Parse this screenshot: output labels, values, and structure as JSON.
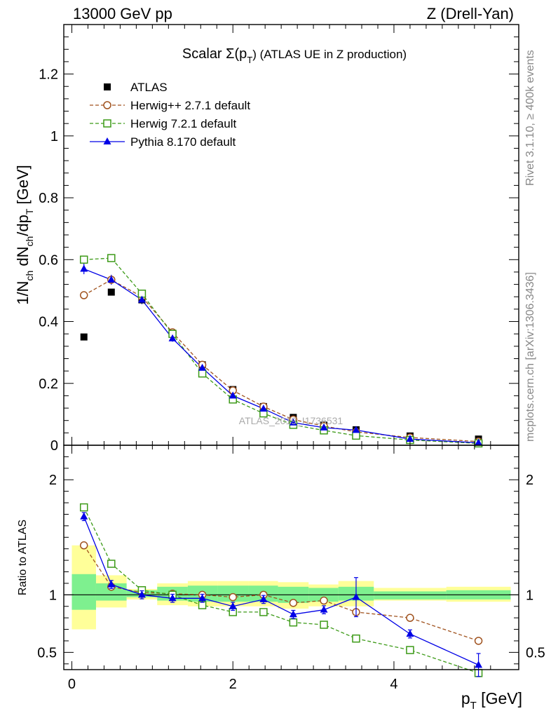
{
  "header": {
    "left": "13000 GeV pp",
    "right": "Z (Drell-Yan)"
  },
  "side_labels": {
    "rivet": "Rivet 3.1.10, ≥ 400k events",
    "mcplots": "mcplots.cern.ch [arXiv:1306.3436]"
  },
  "watermark": "ATLAS_2019_I1736531",
  "colors": {
    "atlas": "#000000",
    "herwigpp": "#a0521e",
    "herwig7": "#3c9a17",
    "pythia": "#0000e6",
    "band_inner": "#7ef08f",
    "band_outer": "#ffff99"
  },
  "chart_data": [
    {
      "type": "scatter",
      "panel": "main",
      "title_prefix": "Scalar Σ(p",
      "title_sub": "T",
      "title_suffix": ") (ATLAS UE in Z production)",
      "ylabel": "1/N_ch dN_ch/dp_T [GeV]",
      "ylabel_parts": {
        "a": "1/N",
        "b": "ch",
        "c": " dN",
        "d": "ch",
        "e": "/dp",
        "f": "T",
        "g": " [GeV]"
      },
      "xlim": [
        -0.1,
        5.55
      ],
      "ylim": [
        0,
        1.36
      ],
      "y_ticks": [
        0,
        0.2,
        0.4,
        0.6,
        0.8,
        1,
        1.2
      ],
      "y_tick_labels": [
        "0",
        "0.2",
        "0.4",
        "0.6",
        "0.8",
        "1",
        "1.2"
      ],
      "legend": [
        {
          "name": "ATLAS",
          "key": "atlas",
          "marker": "square-filled"
        },
        {
          "name": "Herwig++ 2.7.1 default",
          "key": "herwigpp",
          "marker": "circle-open"
        },
        {
          "name": "Herwig 7.2.1 default",
          "key": "herwig7",
          "marker": "square-open"
        },
        {
          "name": "Pythia 8.170 default",
          "key": "pythia",
          "marker": "triangle-filled"
        }
      ],
      "x": [
        0.15,
        0.49,
        0.87,
        1.25,
        1.62,
        2.0,
        2.38,
        2.75,
        3.13,
        3.53,
        4.2,
        5.05
      ],
      "series": [
        {
          "name": "ATLAS",
          "key": "atlas",
          "values": [
            0.35,
            0.495,
            0.47,
            0.36,
            0.26,
            0.18,
            0.125,
            0.09,
            0.065,
            0.05,
            0.03,
            0.02
          ]
        },
        {
          "name": "Herwig++ 2.7.1 default",
          "key": "herwigpp",
          "values": [
            0.485,
            0.535,
            0.48,
            0.365,
            0.26,
            0.177,
            0.125,
            0.083,
            0.062,
            0.043,
            0.025,
            0.012
          ]
        },
        {
          "name": "Herwig 7.2.1 default",
          "key": "herwig7",
          "values": [
            0.6,
            0.605,
            0.49,
            0.36,
            0.232,
            0.148,
            0.103,
            0.066,
            0.048,
            0.031,
            0.017,
            0.006
          ]
        },
        {
          "name": "Pythia 8.170 default",
          "key": "pythia",
          "values": [
            0.57,
            0.535,
            0.47,
            0.345,
            0.25,
            0.16,
            0.118,
            0.073,
            0.057,
            0.049,
            0.02,
            0.008
          ]
        }
      ]
    },
    {
      "type": "line",
      "panel": "ratio",
      "ylabel": "Ratio to ATLAS",
      "xlabel_main": "p",
      "xlabel_sub": "T",
      "xlabel_unit": " [GeV]",
      "xlim": [
        -0.1,
        5.55
      ],
      "ylim": [
        0.35,
        2.3
      ],
      "x_ticks": [
        0,
        2,
        4
      ],
      "x_tick_labels": [
        "0",
        "2",
        "4"
      ],
      "y_ticks": [
        0.5,
        1,
        2
      ],
      "y_tick_labels": [
        "0.5",
        "1",
        "2"
      ],
      "x": [
        0.15,
        0.49,
        0.87,
        1.25,
        1.62,
        2.0,
        2.38,
        2.75,
        3.13,
        3.53,
        4.2,
        5.05
      ],
      "bins": [
        0,
        0.3,
        0.68,
        1.06,
        1.44,
        1.81,
        2.19,
        2.56,
        2.94,
        3.31,
        3.75,
        4.65,
        5.45
      ],
      "band_inner": [
        [
          0.87,
          1.18
        ],
        [
          0.95,
          1.1
        ],
        [
          0.98,
          1.04
        ],
        [
          0.95,
          1.07
        ],
        [
          0.94,
          1.08
        ],
        [
          0.94,
          1.08
        ],
        [
          0.94,
          1.08
        ],
        [
          0.93,
          1.07
        ],
        [
          0.94,
          1.06
        ],
        [
          0.95,
          1.07
        ],
        [
          0.96,
          1.03
        ],
        [
          0.96,
          1.04
        ]
      ],
      "band_outer": [
        [
          0.7,
          1.43
        ],
        [
          0.89,
          1.17
        ],
        [
          0.96,
          1.05
        ],
        [
          0.91,
          1.1
        ],
        [
          0.9,
          1.12
        ],
        [
          0.9,
          1.12
        ],
        [
          0.9,
          1.12
        ],
        [
          0.88,
          1.11
        ],
        [
          0.9,
          1.09
        ],
        [
          0.9,
          1.12
        ],
        [
          0.95,
          1.06
        ],
        [
          0.94,
          1.07
        ]
      ],
      "series": [
        {
          "name": "Herwig++ 2.7.1 default",
          "key": "herwigpp",
          "values": [
            1.43,
            1.07,
            1.02,
            1.01,
            1.0,
            0.98,
            1.0,
            0.93,
            0.95,
            0.85,
            0.8,
            0.6
          ]
        },
        {
          "name": "Herwig 7.2.1 default",
          "key": "herwig7",
          "values": [
            1.76,
            1.27,
            1.04,
            1.0,
            0.91,
            0.85,
            0.85,
            0.76,
            0.74,
            0.62,
            0.52,
            0.32
          ]
        },
        {
          "name": "Pythia 8.170 default",
          "key": "pythia",
          "values": [
            1.68,
            1.09,
            1.0,
            0.97,
            0.97,
            0.9,
            0.96,
            0.83,
            0.87,
            0.98,
            0.66,
            0.39
          ]
        }
      ]
    }
  ]
}
